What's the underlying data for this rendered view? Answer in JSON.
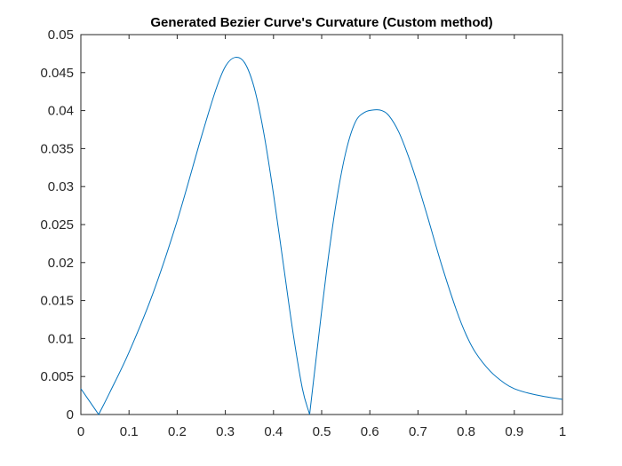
{
  "chart_data": {
    "type": "line",
    "title": "Generated Bezier Curve's Curvature (Custom method)",
    "xlabel": "",
    "ylabel": "",
    "xlim": [
      0,
      1
    ],
    "ylim": [
      0,
      0.05
    ],
    "xticks": [
      "0",
      "0.1",
      "0.2",
      "0.3",
      "0.4",
      "0.5",
      "0.6",
      "0.7",
      "0.8",
      "0.9",
      "1"
    ],
    "yticks": [
      "0",
      "0.005",
      "0.01",
      "0.015",
      "0.02",
      "0.025",
      "0.03",
      "0.035",
      "0.04",
      "0.045",
      "0.05"
    ],
    "grid": false,
    "line_color": "#0072BD",
    "series": [
      {
        "x": [
          0,
          0.037,
          0.06,
          0.1,
          0.15,
          0.2,
          0.25,
          0.28,
          0.3,
          0.32,
          0.34,
          0.36,
          0.38,
          0.4,
          0.42,
          0.44,
          0.46,
          0.475,
          0.49,
          0.51,
          0.53,
          0.55,
          0.57,
          0.59,
          0.61,
          0.625,
          0.64,
          0.66,
          0.68,
          0.7,
          0.72,
          0.75,
          0.78,
          0.8,
          0.82,
          0.85,
          0.88,
          0.9,
          0.93,
          0.96,
          1.0
        ],
        "y": [
          0.0034,
          0.0,
          0.0029,
          0.0082,
          0.016,
          0.0255,
          0.0365,
          0.0427,
          0.0458,
          0.047,
          0.0463,
          0.043,
          0.037,
          0.029,
          0.02,
          0.011,
          0.0034,
          0.0,
          0.0082,
          0.0188,
          0.0278,
          0.0345,
          0.0385,
          0.0398,
          0.0401,
          0.04,
          0.0393,
          0.0372,
          0.034,
          0.0302,
          0.026,
          0.0195,
          0.0137,
          0.0105,
          0.0081,
          0.0057,
          0.0041,
          0.0034,
          0.0028,
          0.0024,
          0.002
        ]
      }
    ]
  }
}
